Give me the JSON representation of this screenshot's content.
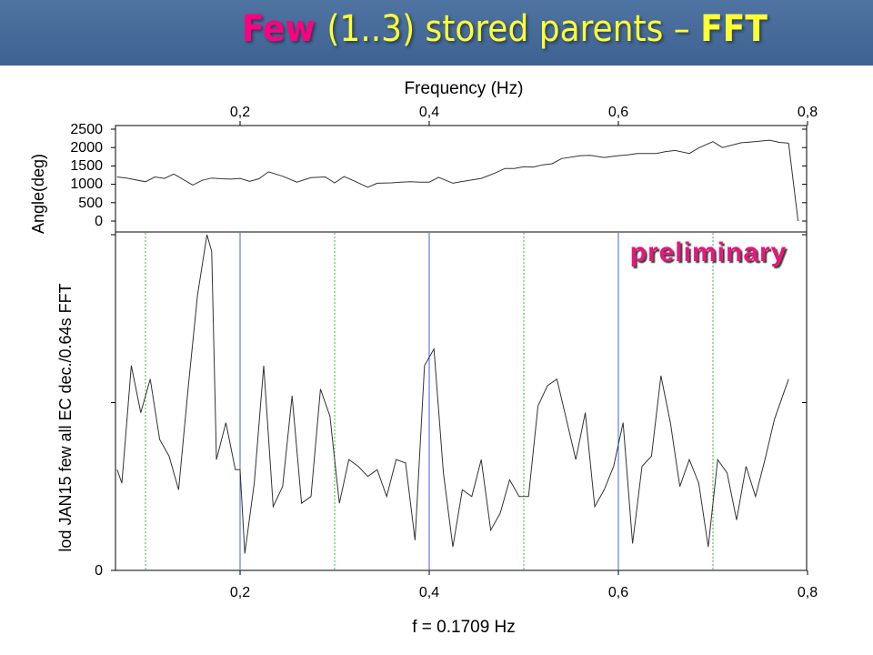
{
  "title": {
    "part1": "Few",
    "part2": "(1..3)",
    "part3": " stored parents – ",
    "part4": "FFT",
    "colors": {
      "pink": "#ff0080",
      "yellow": "#ffff33",
      "bar": "#4a6c9a"
    }
  },
  "annotation": "preliminary",
  "chart_data": [
    {
      "type": "line",
      "title": "",
      "xlabel": "Frequency (Hz)",
      "ylabel": "Angle(deg)",
      "xlim": [
        0.07,
        0.8
      ],
      "ylim": [
        -100,
        2500
      ],
      "x_ticks": [
        "0,2",
        "0,4",
        "0,6",
        "0,8"
      ],
      "y_ticks": [
        "2500",
        "2000",
        "1500",
        "1000",
        "500",
        "0"
      ],
      "series": [
        {
          "x": [
            0.07,
            0.08,
            0.1,
            0.11,
            0.12,
            0.13,
            0.15,
            0.16,
            0.17,
            0.18,
            0.19,
            0.2,
            0.21,
            0.22,
            0.23,
            0.245,
            0.26,
            0.275,
            0.29,
            0.3,
            0.31,
            0.32,
            0.335,
            0.345,
            0.36,
            0.37,
            0.38,
            0.39,
            0.4,
            0.41,
            0.425,
            0.44,
            0.455,
            0.47,
            0.48,
            0.49,
            0.5,
            0.51,
            0.52,
            0.53,
            0.54,
            0.56,
            0.57,
            0.585,
            0.6,
            0.61,
            0.62,
            0.64,
            0.65,
            0.66,
            0.675,
            0.685,
            0.7,
            0.71,
            0.73,
            0.74,
            0.76,
            0.77,
            0.78
          ],
          "values": [
            1200,
            1170,
            1070,
            1200,
            1160,
            1280,
            980,
            1110,
            1170,
            1150,
            1140,
            1160,
            1080,
            1150,
            1340,
            1220,
            1060,
            1180,
            1200,
            1040,
            1210,
            1100,
            920,
            1030,
            1040,
            1060,
            1070,
            1060,
            1060,
            1190,
            1030,
            1100,
            1160,
            1310,
            1430,
            1430,
            1480,
            1470,
            1530,
            1560,
            1700,
            1780,
            1790,
            1730,
            1780,
            1800,
            1840,
            1840,
            1890,
            1920,
            1840,
            1990,
            2160,
            2000,
            2130,
            2150,
            2200,
            2140,
            2120
          ]
        },
        {
          "x": [
            0.78,
            0.79
          ],
          "values": [
            2120,
            0
          ]
        }
      ],
      "grid": false
    },
    {
      "type": "line",
      "title": "",
      "xlabel": "f = 0.1709 Hz",
      "ylabel": "lod JAN15 few all EC dec./0.64s FFT",
      "xlim": [
        0.07,
        0.8
      ],
      "ylim": [
        0,
        1.0
      ],
      "x_ticks": [
        "0,2",
        "0,4",
        "0,6",
        "0,8"
      ],
      "y_ticks": [
        "0"
      ],
      "vertical_lines": {
        "solid_blue": [
          0.2,
          0.4,
          0.6
        ],
        "dotted_green": [
          0.1,
          0.3,
          0.5,
          0.7
        ]
      },
      "series": [
        {
          "x": [
            0.07,
            0.075,
            0.085,
            0.095,
            0.105,
            0.115,
            0.125,
            0.135,
            0.145,
            0.155,
            0.165,
            0.17,
            0.175,
            0.185,
            0.195,
            0.2,
            0.205,
            0.215,
            0.225,
            0.235,
            0.245,
            0.255,
            0.265,
            0.275,
            0.285,
            0.295,
            0.305,
            0.315,
            0.325,
            0.335,
            0.345,
            0.355,
            0.365,
            0.375,
            0.385,
            0.395,
            0.405,
            0.415,
            0.425,
            0.435,
            0.445,
            0.455,
            0.465,
            0.475,
            0.485,
            0.495,
            0.505,
            0.515,
            0.525,
            0.535,
            0.545,
            0.555,
            0.565,
            0.575,
            0.585,
            0.595,
            0.605,
            0.615,
            0.625,
            0.635,
            0.645,
            0.655,
            0.665,
            0.675,
            0.685,
            0.695,
            0.705,
            0.715,
            0.725,
            0.735,
            0.745,
            0.755,
            0.765,
            0.78
          ],
          "values": [
            0.3,
            0.26,
            0.61,
            0.47,
            0.57,
            0.39,
            0.34,
            0.24,
            0.54,
            0.82,
            1.0,
            0.95,
            0.33,
            0.44,
            0.3,
            0.3,
            0.05,
            0.26,
            0.61,
            0.19,
            0.25,
            0.52,
            0.2,
            0.22,
            0.54,
            0.46,
            0.2,
            0.33,
            0.31,
            0.28,
            0.3,
            0.22,
            0.33,
            0.32,
            0.09,
            0.61,
            0.66,
            0.29,
            0.07,
            0.24,
            0.22,
            0.33,
            0.12,
            0.17,
            0.27,
            0.22,
            0.22,
            0.49,
            0.55,
            0.57,
            0.45,
            0.33,
            0.47,
            0.19,
            0.24,
            0.31,
            0.44,
            0.08,
            0.31,
            0.34,
            0.58,
            0.44,
            0.25,
            0.33,
            0.26,
            0.07,
            0.33,
            0.29,
            0.15,
            0.31,
            0.22,
            0.33,
            0.45,
            0.57
          ]
        }
      ],
      "grid": false
    }
  ]
}
